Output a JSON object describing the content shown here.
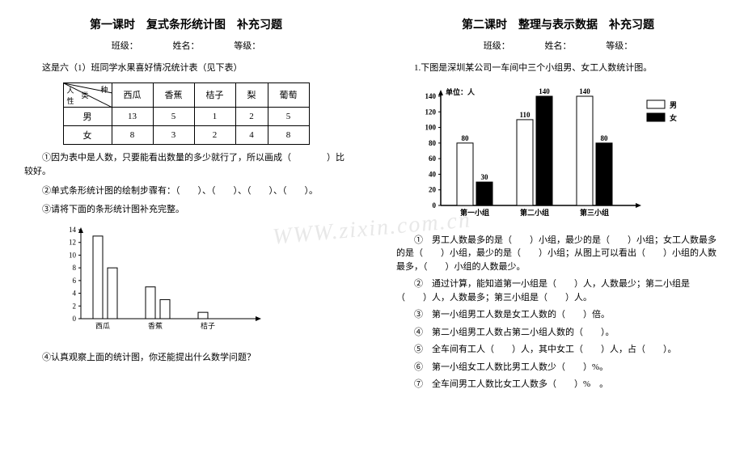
{
  "watermark": "WWW.zixin.com.cn",
  "page1": {
    "title": "第一课时　复式条形统计图　补充习题",
    "meta": {
      "class_label": "班级：",
      "name_label": "姓名：",
      "grade_label": "等级："
    },
    "intro": "这是六（1）班同学水果喜好情况统计表（见下表）",
    "table": {
      "diag_top": "种",
      "diag_mid": "类",
      "diag_bot": "人\n性",
      "cols": [
        "西瓜",
        "香蕉",
        "桔子",
        "梨",
        "葡萄"
      ],
      "rows": [
        {
          "label": "男",
          "vals": [
            "13",
            "5",
            "1",
            "2",
            "5"
          ]
        },
        {
          "label": "女",
          "vals": [
            "8",
            "3",
            "2",
            "4",
            "8"
          ]
        }
      ]
    },
    "q1": "①因为表中是人数，只要能看出数量的多少就行了，所以画成（　　　　）比较好。",
    "q2": "②单式条形统计图的绘制步骤有：（　　）、（　　）、（　　）、（　　）。",
    "q3": "③请将下面的条形统计图补充完整。",
    "chart": {
      "yticks": [
        "14",
        "12",
        "10",
        "8",
        "6",
        "4",
        "2",
        "0"
      ],
      "bars": [
        {
          "label": "西瓜",
          "vals": [
            13,
            8
          ]
        },
        {
          "label": "香蕉",
          "vals": [
            5,
            3
          ]
        },
        {
          "label": "桔子",
          "vals": [
            1,
            0
          ]
        }
      ],
      "ymax": 14,
      "axis_color": "#000000",
      "bar_fill": "#ffffff",
      "bar_stroke": "#000000",
      "fontsize": 9
    },
    "q4": "④认真观察上面的统计图，你还能提出什么数学问题？"
  },
  "page2": {
    "title": "第二课时　整理与表示数据　补充习题",
    "meta": {
      "class_label": "班级：",
      "name_label": "姓名：",
      "grade_label": "等级："
    },
    "intro": "1.下图是深圳某公司一车间中三个小组男、女工人数统计图。",
    "chart": {
      "unit_label": "单位：人",
      "yticks": [
        "0",
        "20",
        "40",
        "60",
        "80",
        "100",
        "120",
        "140"
      ],
      "ymax": 140,
      "groups": [
        {
          "label": "第一小组",
          "male": 80,
          "female": 30
        },
        {
          "label": "第二小组",
          "male": 110,
          "female": 140
        },
        {
          "label": "第三小组",
          "male": 140,
          "female": 80
        }
      ],
      "legend": {
        "male": "男",
        "female": "女"
      },
      "male_fill": "#ffffff",
      "female_fill": "#000000",
      "stroke": "#000000",
      "fontsize": 9
    },
    "q1": "①　男工人数最多的是（　　）小组，最少的是（　　）小组；女工人数最多的是（　　）小组，最少的是（　　）小组；从图上可以看出（　　）小组的人数最多，（　　）小组的人数最少。",
    "q2": "②　通过计算，能知道第一小组是（　　）人，人数最少；第二小组是（　　）人，人数最多；第三小组是（　　）人。",
    "q3": "③　第一小组男工人数是女工人数的（　　）倍。",
    "q4": "④　第二小组男工人数占第二小组人数的（　　）。",
    "q5": "⑤　全车间有工人（　　）人，其中女工（　　）人，占（　　）。",
    "q6": "⑥　第一小组女工人数比男工人数少（　　）%。",
    "q7": "⑦　全车间男工人数比女工人数多（　　）%　。"
  }
}
